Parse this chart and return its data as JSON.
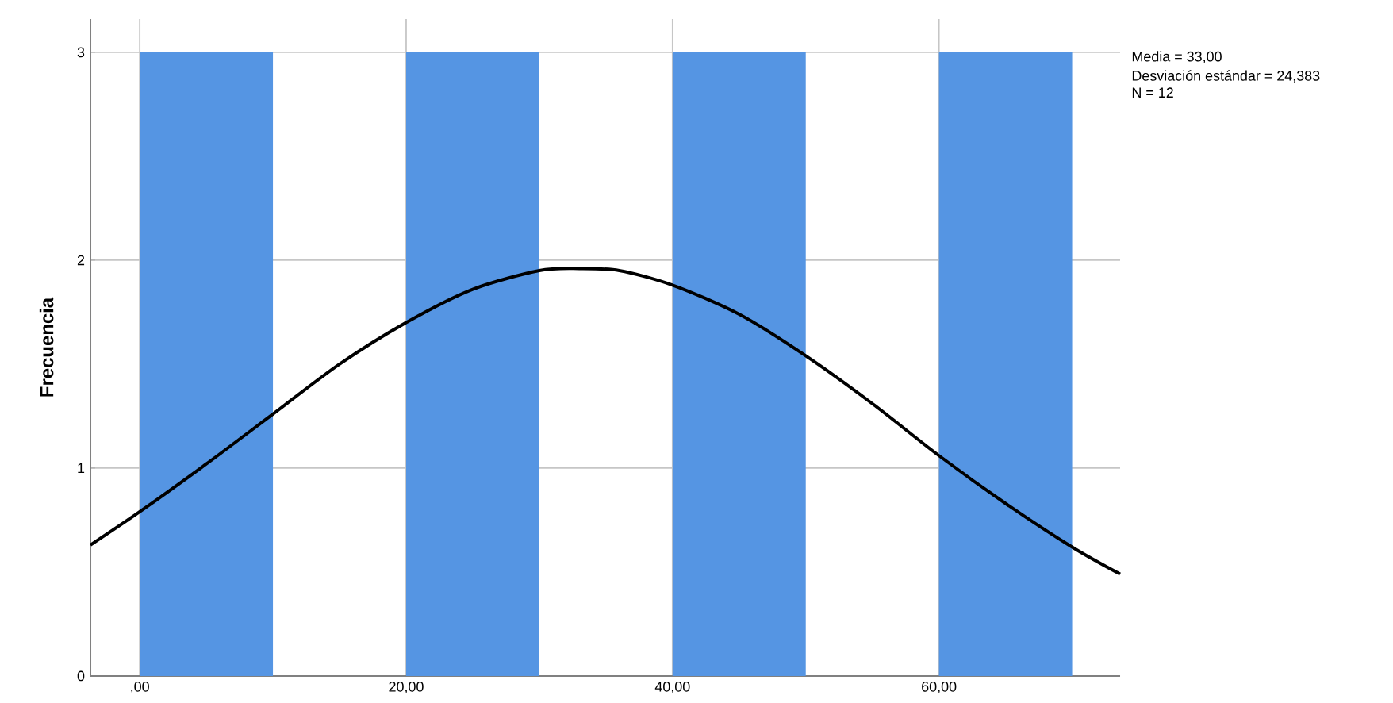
{
  "chart_data": {
    "type": "histogram",
    "ylabel": "Frecuencia",
    "series": [
      {
        "bins": [
          0,
          10,
          20,
          30,
          40,
          50,
          60,
          70
        ],
        "values": [
          3,
          0,
          3,
          0,
          3,
          0,
          3
        ],
        "color": "#5595e3"
      },
      {
        "type": "line",
        "x": [
          -3.7,
          0,
          5,
          10,
          15,
          20,
          25,
          30,
          33,
          36,
          40,
          45,
          50,
          55,
          60,
          65,
          70,
          73.6
        ],
        "values": [
          0.63,
          0.79,
          1.02,
          1.26,
          1.5,
          1.7,
          1.86,
          1.95,
          1.96,
          1.95,
          1.88,
          1.74,
          1.54,
          1.31,
          1.06,
          0.83,
          0.62,
          0.49
        ],
        "color": "#000000"
      }
    ],
    "xlim": [
      -3.7,
      73.6
    ],
    "ylim": [
      0,
      3.16
    ],
    "xticks": [
      {
        "value": 0,
        "label": ",00"
      },
      {
        "value": 20,
        "label": "20,00"
      },
      {
        "value": 40,
        "label": "40,00"
      },
      {
        "value": 60,
        "label": "60,00"
      }
    ],
    "yticks": [
      0,
      1,
      2,
      3
    ],
    "grid": true,
    "annotations": [
      "Media = 33,00",
      "Desviación estándar = 24,383",
      "N = 12"
    ]
  }
}
